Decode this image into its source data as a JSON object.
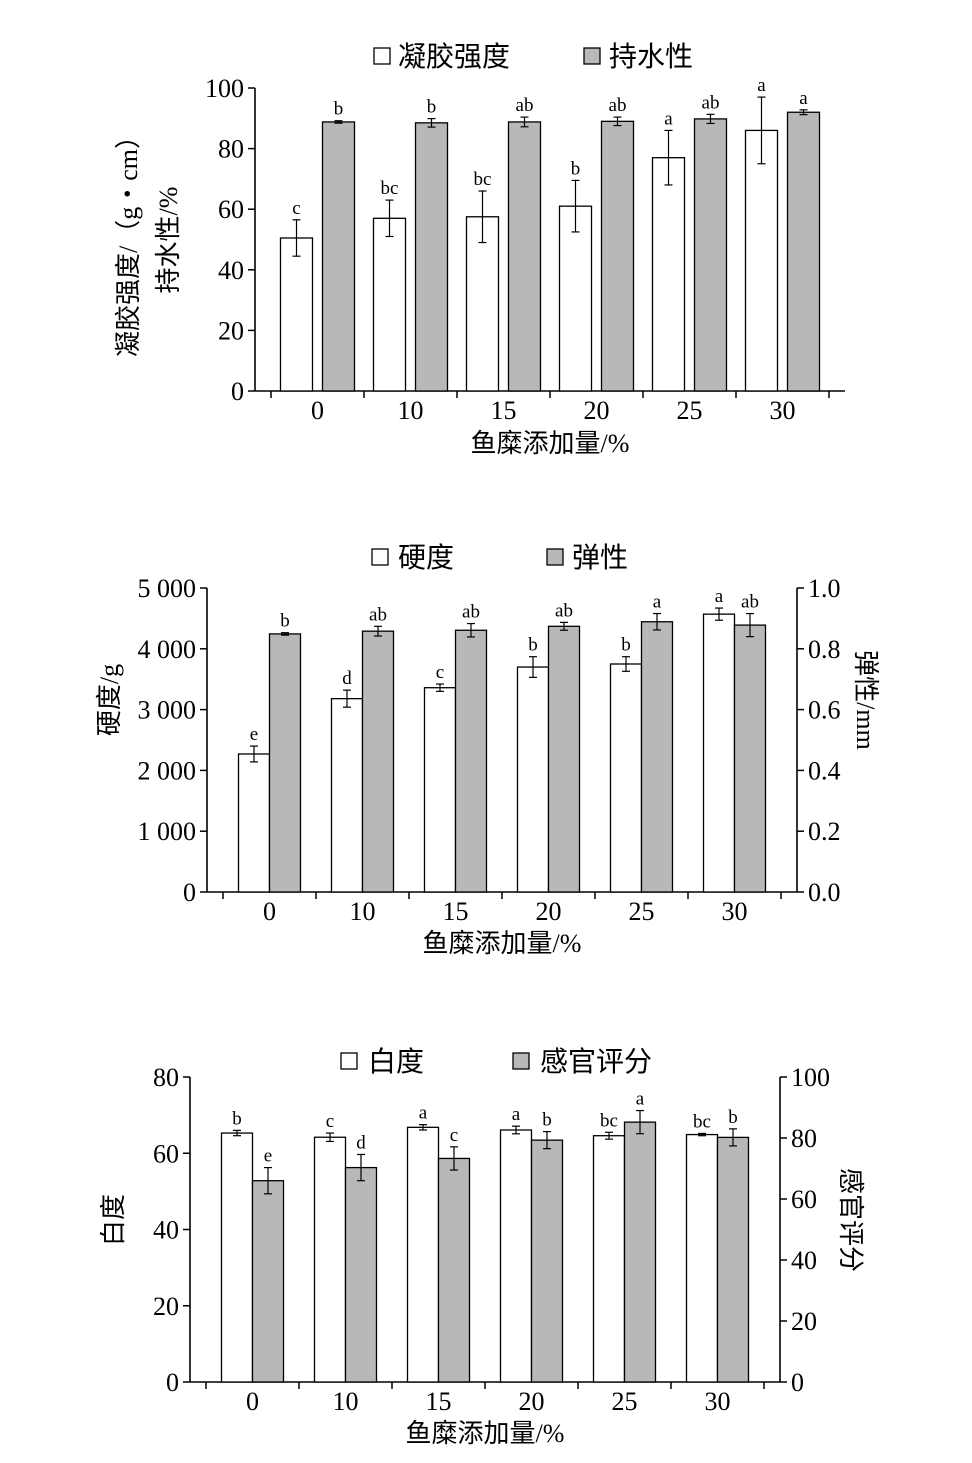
{
  "chart_data": [
    {
      "type": "bar",
      "categories": [
        "0",
        "10",
        "15",
        "20",
        "25",
        "30"
      ],
      "xlabel": "鱼糜添加量/%",
      "ylabel_lines": [
        "凝胶强度/（g・cm）",
        "持水性/%"
      ],
      "ylim": [
        0,
        100
      ],
      "yticks": [
        "0",
        "20",
        "40",
        "60",
        "80",
        "100"
      ],
      "grid": false,
      "legend_position": "top-center",
      "series": [
        {
          "name": "凝胶强度",
          "color": "#ffffff",
          "axis": "left",
          "values": [
            50.5,
            57,
            57.5,
            61,
            77,
            86
          ],
          "errors": [
            6,
            6,
            8.5,
            8.5,
            9,
            11
          ],
          "labels": [
            "c",
            "bc",
            "bc",
            "b",
            "a",
            "a"
          ]
        },
        {
          "name": "持水性",
          "color": "#b8b8b8",
          "axis": "left",
          "values": [
            88.8,
            88.5,
            88.8,
            89,
            89.8,
            92
          ],
          "errors": [
            0.4,
            1.4,
            1.6,
            1.4,
            1.5,
            0.8
          ],
          "labels": [
            "b",
            "b",
            "ab",
            "ab",
            "ab",
            "a"
          ]
        }
      ]
    },
    {
      "type": "bar",
      "categories": [
        "0",
        "10",
        "15",
        "20",
        "25",
        "30"
      ],
      "xlabel": "鱼糜添加量/%",
      "ylabel": "硬度/g",
      "ylabel_right": "弹性/mm",
      "ylim": [
        0,
        5000
      ],
      "ylim_right": [
        0,
        1.0
      ],
      "yticks": [
        "0",
        "1 000",
        "2 000",
        "3 000",
        "4 000",
        "5 000"
      ],
      "yticks_right": [
        "0.0",
        "0.2",
        "0.4",
        "0.6",
        "0.8",
        "1.0"
      ],
      "grid": false,
      "legend_position": "top-center",
      "series": [
        {
          "name": "硬度",
          "color": "#ffffff",
          "axis": "left",
          "values": [
            2270,
            3180,
            3360,
            3700,
            3750,
            4570
          ],
          "errors": [
            130,
            140,
            60,
            170,
            120,
            100
          ],
          "labels": [
            "e",
            "d",
            "c",
            "b",
            "b",
            "a"
          ]
        },
        {
          "name": "弹性",
          "color": "#b8b8b8",
          "axis": "right",
          "values": [
            0.849,
            0.858,
            0.861,
            0.874,
            0.889,
            0.878
          ],
          "errors": [
            0.004,
            0.016,
            0.022,
            0.013,
            0.027,
            0.038
          ],
          "labels": [
            "b",
            "ab",
            "ab",
            "ab",
            "a",
            "ab"
          ]
        }
      ]
    },
    {
      "type": "bar",
      "categories": [
        "0",
        "10",
        "15",
        "20",
        "25",
        "30"
      ],
      "xlabel": "鱼糜添加量/%",
      "ylabel": "白度",
      "ylabel_right": "感官评分",
      "ylim": [
        0,
        80
      ],
      "ylim_right": [
        0,
        100
      ],
      "yticks": [
        "0",
        "20",
        "40",
        "60",
        "80"
      ],
      "yticks_right": [
        "0",
        "20",
        "40",
        "60",
        "80",
        "100"
      ],
      "grid": false,
      "legend_position": "top-center",
      "series": [
        {
          "name": "白度",
          "color": "#ffffff",
          "axis": "left",
          "values": [
            65.3,
            64.2,
            66.8,
            66.1,
            64.6,
            64.9
          ],
          "errors": [
            0.7,
            1.1,
            0.7,
            1.0,
            0.9,
            0.3
          ],
          "labels": [
            "b",
            "c",
            "a",
            "a",
            "bc",
            "bc"
          ]
        },
        {
          "name": "感官评分",
          "color": "#b8b8b8",
          "axis": "right",
          "values": [
            66,
            70.3,
            73.3,
            79.3,
            85.2,
            80.2
          ],
          "errors": [
            4.3,
            4.3,
            3.8,
            2.8,
            3.8,
            2.8
          ],
          "labels": [
            "e",
            "d",
            "c",
            "b",
            "a",
            "b"
          ]
        }
      ]
    }
  ]
}
